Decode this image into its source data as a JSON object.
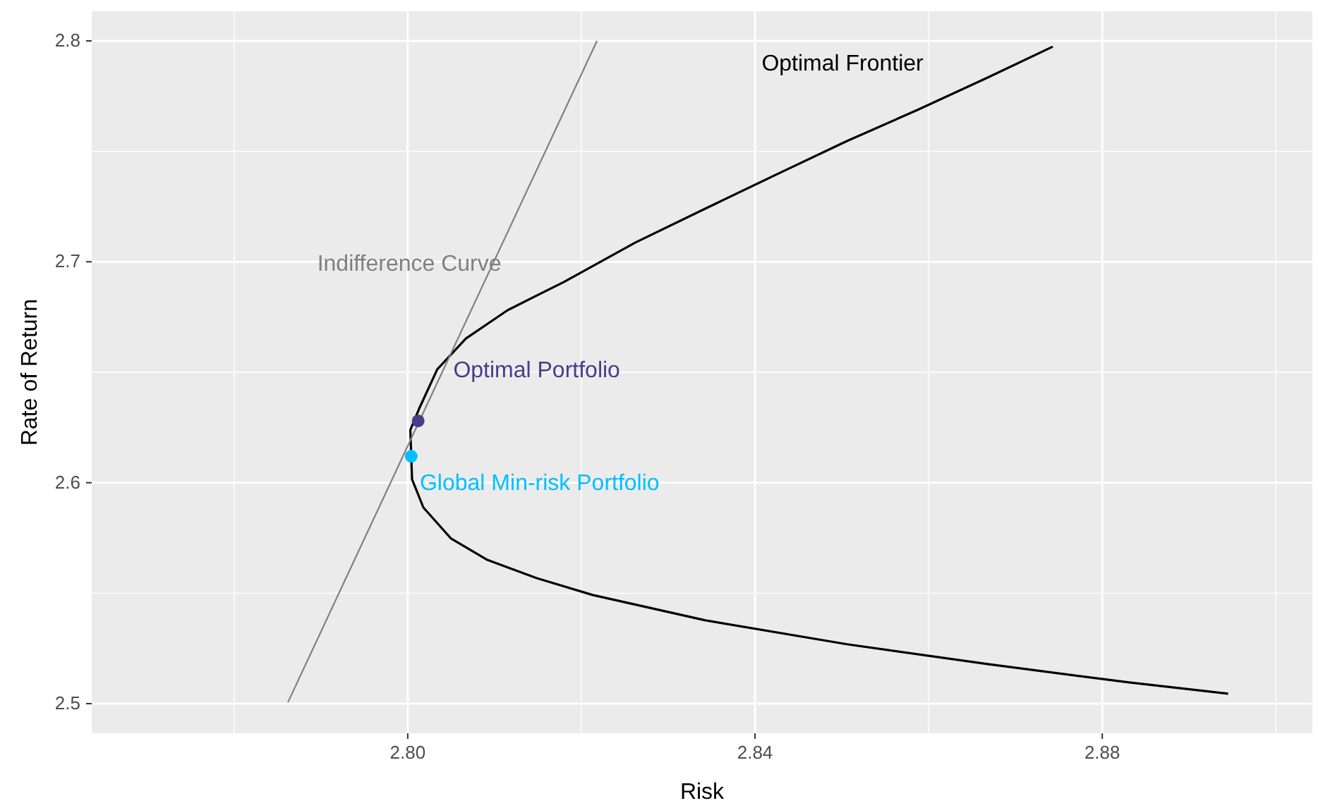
{
  "chart_data": {
    "type": "line",
    "xlabel": "Risk",
    "ylabel": "Rate of Return",
    "xlim": [
      2.7636,
      2.9042
    ],
    "ylim": [
      2.4866,
      2.8134
    ],
    "xticks": [
      {
        "value": 2.78,
        "label": null
      },
      {
        "value": 2.8,
        "label": "2.80"
      },
      {
        "value": 2.82,
        "label": null
      },
      {
        "value": 2.84,
        "label": "2.84"
      },
      {
        "value": 2.86,
        "label": null
      },
      {
        "value": 2.88,
        "label": "2.88"
      },
      {
        "value": 2.9,
        "label": null
      }
    ],
    "yticks": [
      2.5,
      {
        "value": 2.55,
        "label": null
      },
      2.6,
      {
        "value": 2.65,
        "label": null
      },
      2.7,
      {
        "value": 2.75,
        "label": null
      },
      2.8
    ],
    "grid": true,
    "line_style": "solid",
    "series": [
      {
        "name": "Optimal Frontier",
        "color": "#000000",
        "x": [
          2.8945,
          2.8831,
          2.8668,
          2.8506,
          2.8343,
          2.8213,
          2.8148,
          2.8091,
          2.805,
          2.8018,
          2.8005,
          2.8003,
          2.8013,
          2.8034,
          2.8067,
          2.8115,
          2.818,
          2.8262,
          2.8343,
          2.8424,
          2.8506,
          2.8587,
          2.8668,
          2.8743
        ],
        "values": [
          2.5045,
          2.5096,
          2.5179,
          2.5269,
          2.5377,
          2.5492,
          2.5569,
          2.5652,
          2.5747,
          2.5888,
          2.6015,
          2.6239,
          2.6334,
          2.6513,
          2.6653,
          2.6781,
          2.6909,
          2.7087,
          2.7241,
          2.7394,
          2.7547,
          2.7687,
          2.7834,
          2.7974
        ]
      },
      {
        "name": "Indifference Curve",
        "color": "#808080",
        "x": [
          2.7862,
          2.8218
        ],
        "values": [
          2.5006,
          2.8
        ]
      },
      {
        "name": "Optimal Portfolio",
        "type": "scatter",
        "color": "#483d8b",
        "x": [
          2.8012
        ],
        "values": [
          2.628
        ]
      },
      {
        "name": "Global Min-risk Portfolio",
        "type": "scatter",
        "color": "#00bfff",
        "x": [
          2.8004
        ],
        "values": [
          2.612
        ]
      }
    ]
  }
}
